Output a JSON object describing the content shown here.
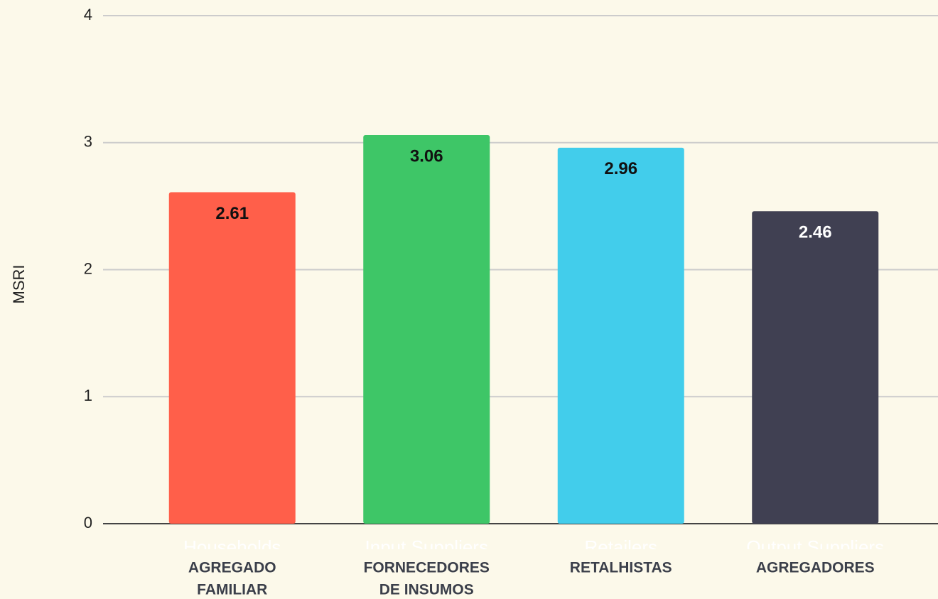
{
  "chart_data": {
    "type": "bar",
    "y_label": "MSRI",
    "categories": [
      "Households",
      "Input Suppliers",
      "Retailers",
      "Output Suppliers"
    ],
    "category_labels": [
      [
        "AGREGADO",
        "FAMILIAR"
      ],
      [
        "FORNECEDORES",
        "DE INSUMOS"
      ],
      [
        "RETALHISTAS"
      ],
      [
        "AGREGADORES"
      ]
    ],
    "values": [
      2.61,
      3.06,
      2.96,
      2.46
    ],
    "colors": [
      "#ff5f4a",
      "#3ec667",
      "#42cdeb",
      "#404052"
    ],
    "value_label_colors": [
      "#111111",
      "#111111",
      "#111111",
      "#ffffff"
    ],
    "ylim": [
      0,
      4
    ],
    "yticks": [
      0,
      1,
      2,
      3,
      4
    ],
    "grid": true
  }
}
